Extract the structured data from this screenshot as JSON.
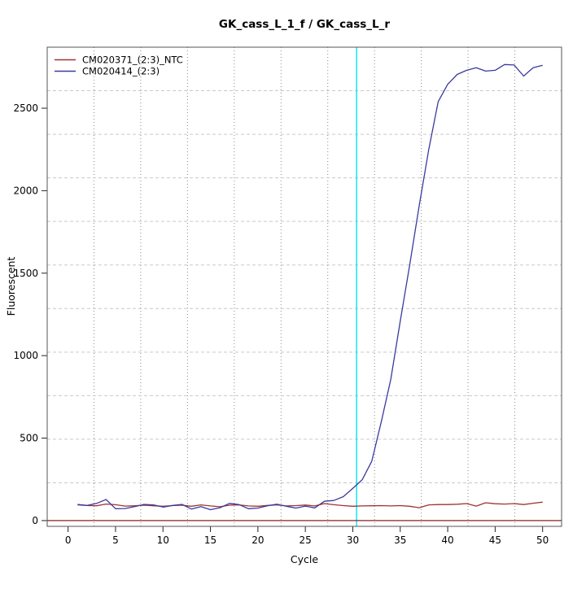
{
  "title": "GK_cass_L_1_f / GK_cass_L_r",
  "chart_data": {
    "type": "line",
    "title": "GK_cass_L_1_f / GK_cass_L_r",
    "xlabel": "Cycle",
    "ylabel": "Fluorescent",
    "xlim": [
      -2.2,
      52.0
    ],
    "ylim": [
      -35,
      2870
    ],
    "x_ticks": [
      0,
      5,
      10,
      15,
      20,
      25,
      30,
      35,
      40,
      45,
      50
    ],
    "y_ticks": [
      0,
      500,
      1000,
      1500,
      2000,
      2500
    ],
    "grid": {
      "nx": 11,
      "ny": 11,
      "h_color": "#c9c9c9",
      "h_dash": "4 3",
      "v_color": "#8a8a8a",
      "v_dash": "1 3"
    },
    "threshold_cycle_line": {
      "orientation": "vertical",
      "x": 30.4,
      "color": "#00e5ee"
    },
    "zero_line": {
      "orientation": "horizontal",
      "y": 0,
      "color": "#8b2020"
    },
    "legend_position": "top-left",
    "x": [
      1,
      2,
      3,
      4,
      5,
      6,
      7,
      8,
      9,
      10,
      11,
      12,
      13,
      14,
      15,
      16,
      17,
      18,
      19,
      20,
      21,
      22,
      23,
      24,
      25,
      26,
      27,
      28,
      29,
      30,
      31,
      32,
      33,
      34,
      35,
      36,
      37,
      38,
      39,
      40,
      41,
      42,
      43,
      44,
      45,
      46,
      47,
      48,
      49,
      50
    ],
    "series": [
      {
        "name": "CM020371_(2:3)_NTC",
        "color": "#a03232",
        "values": [
          95,
          92,
          90,
          100,
          96,
          88,
          90,
          93,
          90,
          87,
          91,
          93,
          87,
          95,
          89,
          84,
          93,
          95,
          89,
          87,
          92,
          95,
          89,
          91,
          94,
          89,
          103,
          96,
          91,
          87,
          89,
          90,
          91,
          89,
          91,
          87,
          78,
          95,
          97,
          97,
          99,
          103,
          88,
          108,
          102,
          100,
          103,
          97,
          105,
          112
        ]
      },
      {
        "name": "CM020414_(2:3)",
        "color": "#3a3a9e",
        "values": [
          98,
          92,
          104,
          128,
          72,
          73,
          85,
          98,
          95,
          82,
          92,
          98,
          70,
          85,
          66,
          78,
          104,
          97,
          72,
          76,
          90,
          99,
          87,
          76,
          88,
          77,
          117,
          122,
          145,
          196,
          248,
          360,
          600,
          855,
          1210,
          1550,
          1910,
          2250,
          2540,
          2645,
          2705,
          2730,
          2745,
          2725,
          2730,
          2765,
          2762,
          2695,
          2745,
          2760
        ]
      }
    ]
  },
  "plot": {
    "box_color": "#555555",
    "tick_color": "#222222"
  }
}
